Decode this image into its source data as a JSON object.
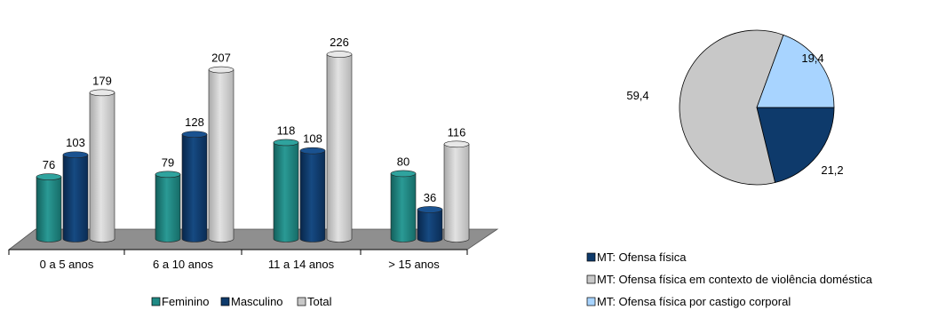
{
  "colors": {
    "feminino": "#1f8a85",
    "masculino": "#0e3a6b",
    "total": "#c8c8c8",
    "pie_ofensa": "#0e3a6b",
    "pie_domestica": "#c8c8c8",
    "pie_castigo": "#a8d4ff",
    "floor": "#8f8f8f"
  },
  "chart_data": [
    {
      "type": "bar",
      "categories": [
        "0 a 5 anos",
        "6 a 10 anos",
        "11 a 14 anos",
        "> 15 anos"
      ],
      "series": [
        {
          "name": "Feminino",
          "values": [
            76,
            79,
            118,
            80
          ]
        },
        {
          "name": "Masculino",
          "values": [
            103,
            128,
            108,
            36
          ]
        },
        {
          "name": "Total",
          "values": [
            179,
            207,
            226,
            116
          ]
        }
      ],
      "ylim": [
        0,
        240
      ],
      "legend": "bottom",
      "grid": false
    },
    {
      "type": "pie",
      "slices": [
        {
          "name": "MT: Ofensa física",
          "value": 21.2,
          "label": "21,2"
        },
        {
          "name": "MT: Ofensa física em contexto de violência doméstica",
          "value": 59.4,
          "label": "59,4"
        },
        {
          "name": "MT: Ofensa física por castigo corporal",
          "value": 19.4,
          "label": "19,4"
        }
      ],
      "legend": "bottom"
    }
  ]
}
